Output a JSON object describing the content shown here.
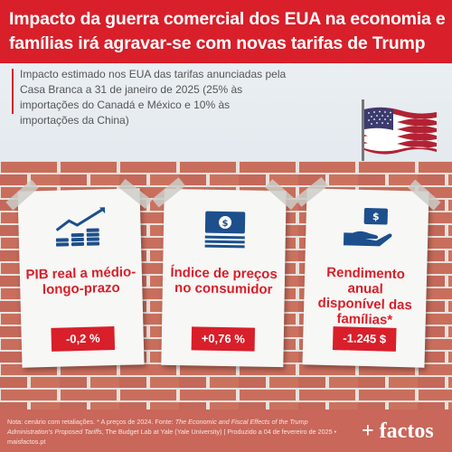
{
  "header": {
    "title": "Impacto da guerra comercial dos EUA na economia e famílias irá agravar-se com novas tarifas de Trump",
    "subtitle": "Impacto estimado nos EUA das tarifas anunciadas pela Casa Branca a 31 de janeiro de 2025 (25% às importações do Canadá e México e 10% às importações da China)"
  },
  "cards": [
    {
      "label": "PIB real a médio-longo-prazo",
      "value": "-0,2 %",
      "icon": "growth-coins-icon"
    },
    {
      "label": "Índice de preços no consumidor",
      "value": "+0,76 %",
      "icon": "banknote-icon"
    },
    {
      "label": "Rendimento anual disponível das famílias*",
      "value": "-1.245 $",
      "icon": "hand-money-icon"
    }
  ],
  "footer": {
    "note_prefix": "Nota: cenário com retaliações. * A preços de 2024. Fonte: ",
    "source_title": "The Economic and Fiscal Effects of the Trump Administration's Proposed Tariffs",
    "note_suffix": ", The Budget Lab at Yale (Yale University) | Produzido a 04 de fevereiro de 2025 • maisfactos.pt",
    "brand": "+ factos"
  },
  "colors": {
    "accent": "#d81f2a",
    "brick": "#c86d5a",
    "icon": "#1d4f8c"
  }
}
